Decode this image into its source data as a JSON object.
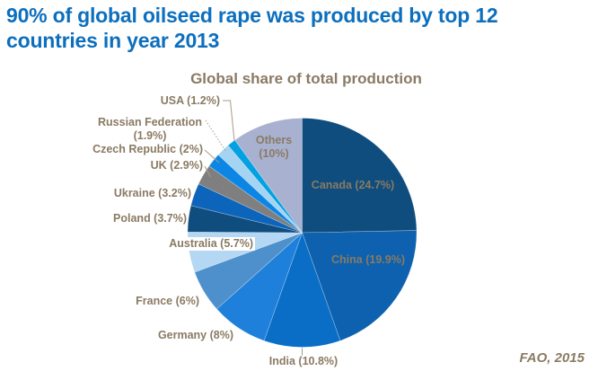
{
  "page": {
    "title_line1": "90% of global oilseed rape was produced by top 12",
    "title_line2": "countries in year 2013",
    "source": "FAO, 2015",
    "colors": {
      "title": "#0c6fbe",
      "labels": "#8a7a63",
      "leader_lines": "#a89a85",
      "background": "#ffffff"
    }
  },
  "chart_data": {
    "type": "pie",
    "title": "Global share of total production",
    "unit": "% of global oilseed rape production, 2013",
    "direction": "clockwise",
    "start_angle_deg": 0,
    "legend_position": "labels-around-and-inside-pie",
    "slices": [
      {
        "label": "Canada",
        "value": 24.7,
        "display": "Canada (24.7%)",
        "color": "#0e4d7e",
        "label_placement": "inside"
      },
      {
        "label": "China",
        "value": 19.9,
        "display": "China (19.9%)",
        "color": "#0d61ae",
        "label_placement": "inside"
      },
      {
        "label": "India",
        "value": 10.8,
        "display": "India (10.8%)",
        "color": "#0a6ec6",
        "label_placement": "outside"
      },
      {
        "label": "Germany",
        "value": 8,
        "display": "Germany (8%)",
        "color": "#1e80da",
        "label_placement": "outside"
      },
      {
        "label": "France",
        "value": 6,
        "display": "France (6%)",
        "color": "#4d90cb",
        "label_placement": "outside"
      },
      {
        "label": "Australia",
        "value": 5.7,
        "display": "Australia (5.7%)",
        "color": "#b4d7f3",
        "label_placement": "outside"
      },
      {
        "label": "Poland",
        "value": 3.7,
        "display": "Poland (3.7%)",
        "color": "#104d7f",
        "label_placement": "outside"
      },
      {
        "label": "Ukraine",
        "value": 3.2,
        "display": "Ukraine (3.2%)",
        "color": "#0d64bb",
        "label_placement": "outside"
      },
      {
        "label": "UK",
        "value": 2.9,
        "display": "UK (2.9%)",
        "color": "#7f7f7f",
        "label_placement": "outside"
      },
      {
        "label": "Czech Republic",
        "value": 2,
        "display": "Czech Republic (2%)",
        "color": "#0c86e4",
        "label_placement": "outside"
      },
      {
        "label": "Russian Federation",
        "value": 1.9,
        "display": "Russian Federation (1.9%)",
        "color": "#a5d3f2",
        "label_placement": "outside"
      },
      {
        "label": "USA",
        "value": 1.2,
        "display": "USA (1.2%)",
        "color": "#02a1e2",
        "label_placement": "outside"
      },
      {
        "label": "Others",
        "value": 10,
        "display": "Others (10%)",
        "color": "#a8b2d0",
        "label_placement": "inside"
      }
    ]
  }
}
